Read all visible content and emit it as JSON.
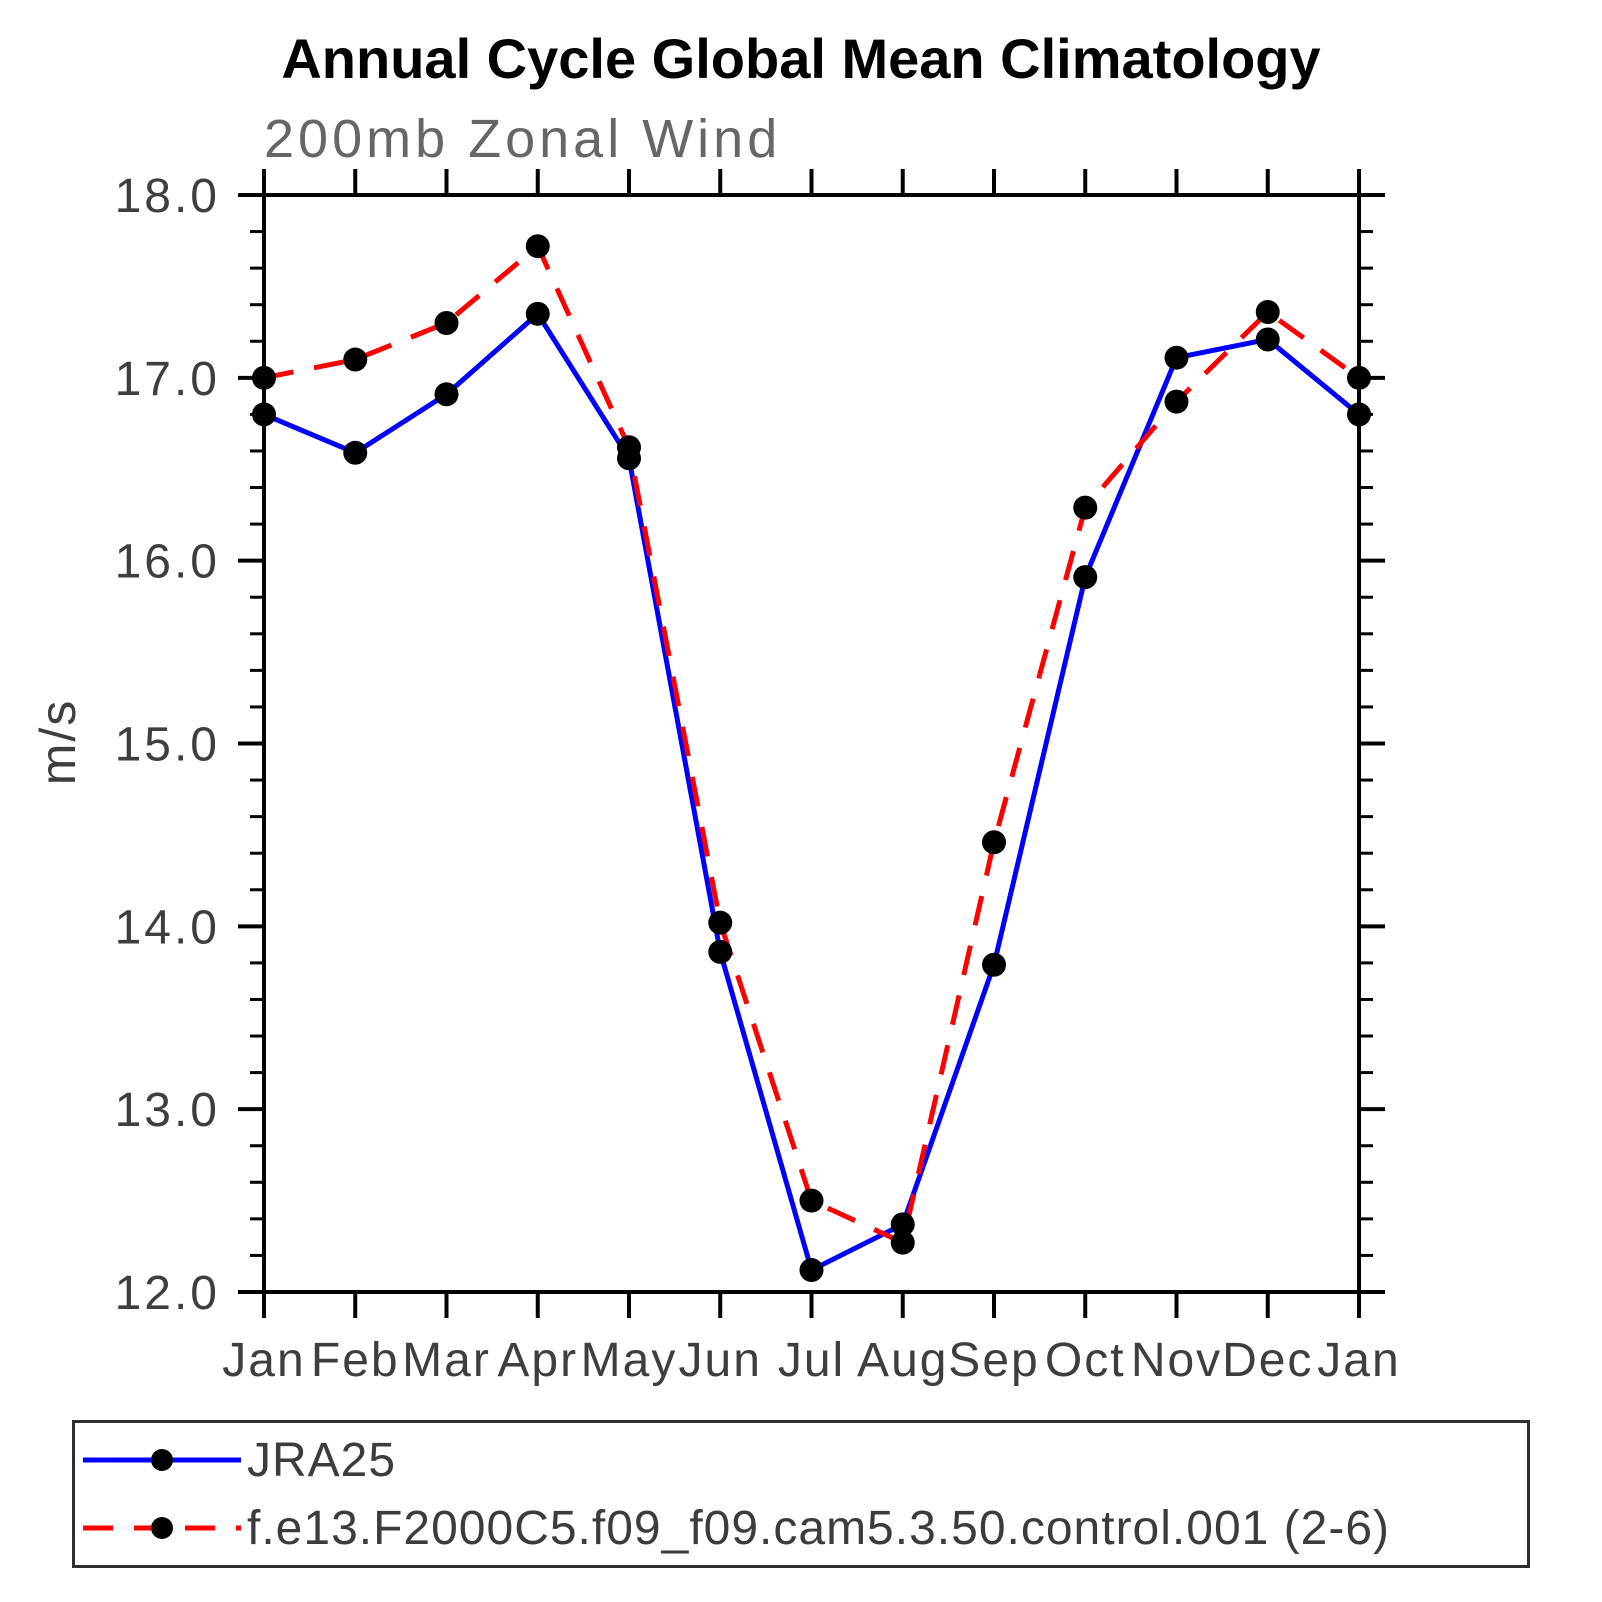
{
  "chart_data": {
    "type": "line",
    "title": "Annual Cycle Global Mean Climatology",
    "subtitle": "200mb Zonal Wind",
    "ylabel": "m/s",
    "xlabel": "",
    "ylim": [
      12.0,
      18.0
    ],
    "y_major_step": 1.0,
    "y_minor_step": 0.2,
    "y_tick_labels": [
      "12.0",
      "13.0",
      "14.0",
      "15.0",
      "16.0",
      "17.0",
      "18.0"
    ],
    "categories": [
      "Jan",
      "Feb",
      "Mar",
      "Apr",
      "May",
      "Jun",
      "Jul",
      "Aug",
      "Sep",
      "Oct",
      "Nov",
      "Dec",
      "Jan"
    ],
    "series": [
      {
        "name": "JRA25",
        "color": "#0000ff",
        "line_style": "solid",
        "marker": "filled-circle",
        "marker_color": "#000000",
        "values": [
          16.8,
          16.59,
          16.91,
          17.35,
          16.56,
          13.86,
          12.12,
          12.37,
          13.79,
          15.91,
          17.11,
          17.21,
          16.8
        ]
      },
      {
        "name": "f.e13.F2000C5.f09_f09.cam5.3.50.control.001 (2-6)",
        "color": "#ff0000",
        "line_style": "dashed",
        "marker": "filled-circle",
        "marker_color": "#000000",
        "values": [
          17.0,
          17.1,
          17.3,
          17.72,
          16.62,
          14.02,
          12.5,
          12.27,
          14.46,
          16.29,
          16.87,
          17.36,
          17.0
        ]
      }
    ],
    "grid": false,
    "legend_position": "bottom-left",
    "axis_color": "#000000",
    "tick_label_color": "#3e3e3e"
  }
}
